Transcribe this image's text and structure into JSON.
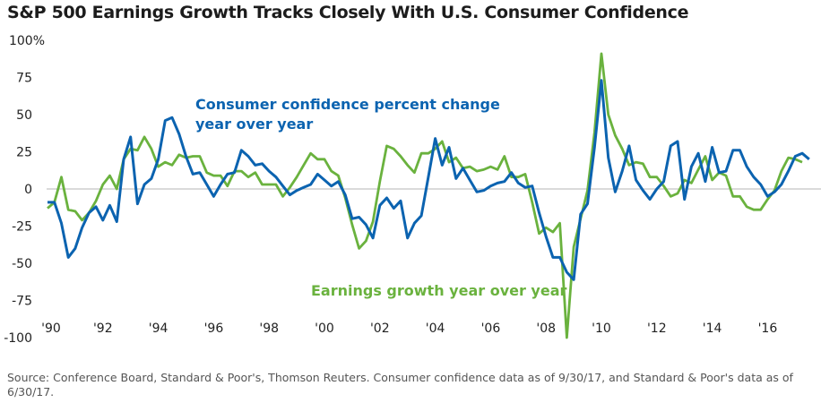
{
  "title": "S&P 500 Earnings Growth Tracks Closely With U.S. Consumer Confidence",
  "source": "Source: Conference Board, Standard & Poor's, Thomson Reuters. Consumer confidence data as of 9/30/17, and Standard & Poor's data as of 6/30/17.",
  "chart_data": {
    "type": "line",
    "title": "S&P 500 Earnings Growth Tracks Closely With U.S. Consumer Confidence",
    "xlabel": "",
    "ylabel": "",
    "ylim": [
      -100,
      100
    ],
    "y_ticks": [
      -100,
      -75,
      -50,
      -25,
      0,
      25,
      50,
      75,
      100
    ],
    "y_tick_labels": [
      "-100",
      "-75",
      "-50",
      "-25",
      "0",
      "25",
      "50",
      "75",
      "100%"
    ],
    "x_ticks": [
      1990,
      1992,
      1994,
      1996,
      1998,
      2000,
      2002,
      2004,
      2006,
      2008,
      2010,
      2012,
      2014,
      2016
    ],
    "x_tick_labels": [
      "'90",
      "'92",
      "'94",
      "'96",
      "'98",
      "'00",
      "'02",
      "'04",
      "'06",
      "'08",
      "'10",
      "'12",
      "'14",
      "'16"
    ],
    "grid": false,
    "zero_line": true,
    "x_frequency": "quarterly",
    "x_start": "1990 Q1",
    "series": [
      {
        "name": "Consumer confidence percent change year over year",
        "label_lines": [
          "Consumer confidence percent change",
          "year over year"
        ],
        "color": "#0b63b0",
        "values": [
          -9,
          -9,
          -23,
          -46,
          -40,
          -26,
          -16,
          -12,
          -21,
          -11,
          -22,
          20,
          35,
          -10,
          3,
          7,
          20,
          46,
          48,
          37,
          22,
          10,
          11,
          3,
          -5,
          3,
          10,
          11,
          26,
          22,
          16,
          17,
          12,
          8,
          2,
          -4,
          -1,
          1,
          3,
          10,
          6,
          2,
          5,
          -4,
          -20,
          -19,
          -24,
          -33,
          -11,
          -6,
          -13,
          -8,
          -33,
          -23,
          -18,
          8,
          34,
          16,
          28,
          7,
          14,
          6,
          -2,
          -1,
          2,
          4,
          5,
          11,
          4,
          1,
          2,
          -16,
          -32,
          -46,
          -46,
          -56,
          -61,
          -17,
          -10,
          28,
          73,
          21,
          -2,
          12,
          29,
          6,
          -1,
          -7,
          0,
          5,
          29,
          32,
          -7,
          15,
          24,
          5,
          28,
          11,
          12,
          26,
          26,
          15,
          8,
          3,
          -5,
          -2,
          3,
          12,
          22,
          24,
          20
        ]
      },
      {
        "name": "Earnings growth year over year",
        "label_lines": [
          "Earnings growth year over year"
        ],
        "color": "#6ab23e",
        "values": [
          -13,
          -9,
          8,
          -14,
          -15,
          -21,
          -16,
          -8,
          3,
          9,
          0,
          20,
          27,
          26,
          35,
          27,
          15,
          18,
          16,
          23,
          21,
          22,
          22,
          11,
          9,
          9,
          2,
          12,
          12,
          8,
          11,
          3,
          3,
          3,
          -5,
          1,
          8,
          16,
          24,
          20,
          20,
          12,
          9,
          -6,
          -24,
          -40,
          -35,
          -22,
          5,
          29,
          27,
          22,
          16,
          11,
          24,
          24,
          27,
          32,
          18,
          21,
          14,
          15,
          12,
          13,
          15,
          13,
          22,
          8,
          8,
          10,
          -9,
          -30,
          -26,
          -29,
          -23,
          -100,
          -39,
          -20,
          -1,
          38,
          91,
          50,
          36,
          27,
          16,
          18,
          17,
          8,
          8,
          2,
          -5,
          -3,
          6,
          4,
          13,
          22,
          6,
          11,
          9,
          -5,
          -5,
          -12,
          -14,
          -14,
          -7,
          -1,
          12,
          21,
          20,
          18
        ]
      }
    ]
  }
}
